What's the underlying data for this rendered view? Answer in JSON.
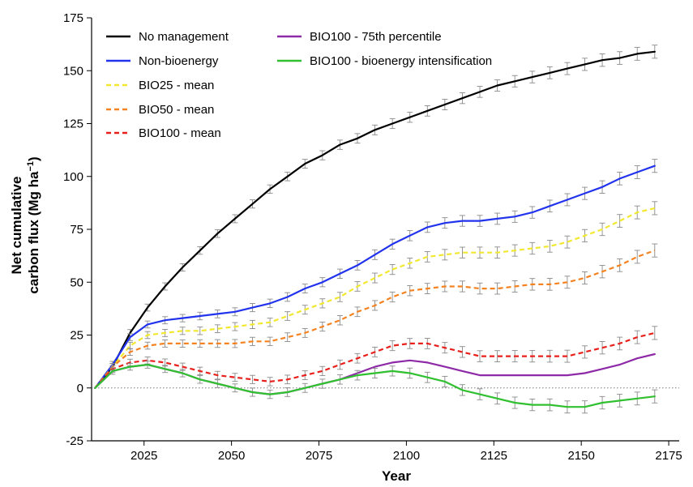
{
  "chart_data": {
    "type": "line",
    "title": "",
    "xlabel": "Year",
    "ylabel_line1": "Net cumulative",
    "ylabel_line2": "carbon flux (Mg ha",
    "ylabel_sup": "−1",
    "ylabel_close": ")",
    "xlim": [
      2010,
      2178
    ],
    "ylim": [
      -25,
      175
    ],
    "xticks": [
      2025,
      2050,
      2075,
      2100,
      2125,
      2150,
      2175
    ],
    "yticks": [
      -25,
      0,
      25,
      50,
      75,
      100,
      125,
      150,
      175
    ],
    "zero_reference_line": 0,
    "grid": false,
    "legend_position": "top-left",
    "x": [
      2011,
      2016,
      2021,
      2026,
      2031,
      2036,
      2041,
      2046,
      2051,
      2056,
      2061,
      2066,
      2071,
      2076,
      2081,
      2086,
      2091,
      2096,
      2101,
      2106,
      2111,
      2116,
      2121,
      2126,
      2131,
      2136,
      2141,
      2146,
      2151,
      2156,
      2161,
      2166,
      2171
    ],
    "series": [
      {
        "name": "No management",
        "color": "#000000",
        "dash": "solid",
        "error_bars": true,
        "values": [
          0,
          10,
          26,
          38,
          48,
          57,
          65,
          73,
          80,
          87,
          94,
          100,
          106,
          110,
          115,
          118,
          122,
          125,
          128,
          131,
          134,
          137,
          140,
          143,
          145,
          147,
          149,
          151,
          153,
          155,
          156,
          158,
          159
        ]
      },
      {
        "name": "Non-bioenergy",
        "color": "#2233ee",
        "dash": "solid",
        "error_bars": true,
        "values": [
          0,
          11,
          24,
          30,
          32,
          33,
          34,
          35,
          36,
          38,
          40,
          43,
          47,
          50,
          54,
          58,
          63,
          68,
          72,
          76,
          78,
          79,
          79,
          80,
          81,
          83,
          86,
          89,
          92,
          95,
          99,
          102,
          105
        ]
      },
      {
        "name": "BIO25 - mean",
        "color": "#f2e830",
        "dash": "dashed",
        "error_bars": true,
        "values": [
          0,
          10,
          20,
          25,
          26,
          27,
          27,
          28,
          29,
          30,
          31,
          34,
          37,
          40,
          43,
          48,
          52,
          56,
          59,
          62,
          63,
          64,
          64,
          64,
          65,
          66,
          67,
          69,
          72,
          75,
          79,
          83,
          85
        ]
      },
      {
        "name": "BIO50 - mean",
        "color": "#f58220",
        "dash": "dashed",
        "error_bars": true,
        "values": [
          0,
          10,
          17,
          20,
          21,
          21,
          21,
          21,
          21,
          22,
          22,
          24,
          26,
          29,
          32,
          36,
          39,
          43,
          46,
          47,
          48,
          48,
          47,
          47,
          48,
          49,
          49,
          50,
          52,
          55,
          58,
          62,
          65
        ]
      },
      {
        "name": "BIO100 - mean",
        "color": "#e8201c",
        "dash": "dashed",
        "error_bars": true,
        "values": [
          0,
          9,
          12,
          13,
          12,
          10,
          8,
          6,
          5,
          4,
          3,
          4,
          6,
          8,
          11,
          14,
          17,
          20,
          21,
          21,
          19,
          17,
          15,
          15,
          15,
          15,
          15,
          15,
          17,
          19,
          21,
          24,
          26
        ]
      },
      {
        "name": "BIO100 - 75th percentile",
        "color": "#8e2aa8",
        "dash": "solid",
        "error_bars": false,
        "values": [
          0,
          8,
          10,
          11,
          9,
          7,
          4,
          2,
          0,
          -2,
          -3,
          -2,
          0,
          2,
          4,
          7,
          10,
          12,
          13,
          12,
          10,
          8,
          6,
          6,
          6,
          6,
          6,
          6,
          7,
          9,
          11,
          14,
          16
        ]
      },
      {
        "name": "BIO100 - bioenergy intensification",
        "color": "#30c030",
        "dash": "solid",
        "error_bars": true,
        "values": [
          0,
          8,
          10,
          11,
          9,
          7,
          4,
          2,
          0,
          -2,
          -3,
          -2,
          0,
          2,
          4,
          6,
          7,
          8,
          7,
          5,
          3,
          -1,
          -3,
          -5,
          -7,
          -8,
          -8,
          -9,
          -9,
          -7,
          -6,
          -5,
          -4
        ]
      }
    ]
  }
}
